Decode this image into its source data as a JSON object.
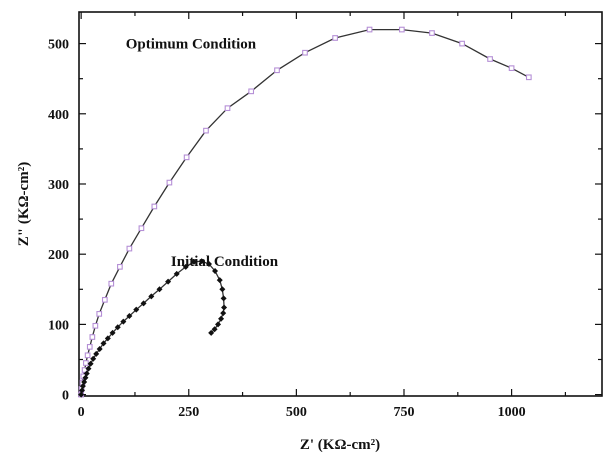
{
  "chart_data": {
    "type": "scatter",
    "title": "",
    "xlabel": "Z' (KΩ-cm²)",
    "ylabel": "Z\" (KΩ-cm²)",
    "xlim": [
      -5,
      1210
    ],
    "ylim": [
      -2,
      545
    ],
    "xticks": [
      0,
      250,
      500,
      750,
      1000
    ],
    "yticks": [
      0,
      100,
      200,
      300,
      400,
      500
    ],
    "grid": false,
    "series": [
      {
        "name": "Optimum Condition",
        "marker": "open-square",
        "color": "#b58fd6",
        "fit_color": "#333333",
        "x": [
          0,
          1,
          3,
          5,
          8,
          11,
          15,
          20,
          26,
          33,
          42,
          55,
          70,
          90,
          112,
          140,
          170,
          205,
          245,
          290,
          340,
          395,
          455,
          520,
          590,
          670,
          745,
          815,
          885,
          950,
          1000,
          1040
        ],
        "y": [
          0,
          8,
          17,
          26,
          35,
          45,
          56,
          68,
          82,
          98,
          115,
          135,
          158,
          182,
          208,
          237,
          268,
          302,
          338,
          376,
          408,
          432,
          462,
          487,
          508,
          520,
          520,
          515,
          500,
          478,
          465,
          452
        ]
      },
      {
        "name": "Initial Condition",
        "marker": "filled-diamond",
        "color": "#111111",
        "fit_color": "#333333",
        "x": [
          0,
          2,
          4,
          7,
          10,
          13,
          17,
          22,
          28,
          35,
          43,
          52,
          62,
          73,
          85,
          98,
          112,
          128,
          145,
          163,
          182,
          202,
          222,
          243,
          262,
          280,
          297,
          311,
          322,
          328,
          331,
          332,
          330,
          325,
          318,
          310,
          302
        ],
        "y": [
          0,
          6,
          12,
          18,
          24,
          30,
          37,
          44,
          51,
          58,
          65,
          73,
          80,
          88,
          96,
          104,
          112,
          121,
          130,
          140,
          150,
          161,
          172,
          182,
          189,
          190,
          186,
          176,
          163,
          150,
          137,
          124,
          116,
          108,
          100,
          93,
          88
        ]
      }
    ],
    "annotations": [
      {
        "text": "Optimum Condition",
        "x": 255,
        "y": 493,
        "anchor": "middle"
      },
      {
        "text": "Initial Condition",
        "x": 333,
        "y": 183,
        "anchor": "middle"
      }
    ]
  }
}
